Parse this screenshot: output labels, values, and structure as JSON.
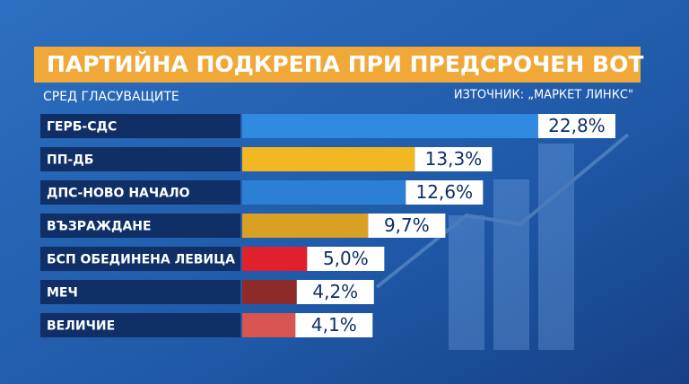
{
  "chart_data": {
    "type": "bar",
    "orientation": "horizontal",
    "title": "ПАРТИЙНА ПОДКРЕПА ПРИ ПРЕДСРОЧЕН ВОТ",
    "subtitle": "СРЕД ГЛАСУВАЩИТЕ",
    "source": "ИЗТОЧНИК: „МАРКЕТ ЛИНКС\"",
    "categories": [
      "ГЕРБ-СДС",
      "ПП-ДБ",
      "ДПС-НОВО НАЧАЛО",
      "ВЪЗРАЖДАНЕ",
      "БСП ОБЕДИНЕНА ЛЕВИЦА",
      "МЕЧ",
      "ВЕЛИЧИЕ"
    ],
    "values": [
      22.8,
      13.3,
      12.6,
      9.7,
      5.0,
      4.2,
      4.1
    ],
    "value_labels": [
      "22,8%",
      "13,3%",
      "12,6%",
      "9,7%",
      "5,0%",
      "4,2%",
      "4,1%"
    ],
    "colors": [
      "#2f8ae0",
      "#f2b824",
      "#2b7fd4",
      "#d9a024",
      "#e0202c",
      "#8e2a2a",
      "#d85450"
    ]
  }
}
